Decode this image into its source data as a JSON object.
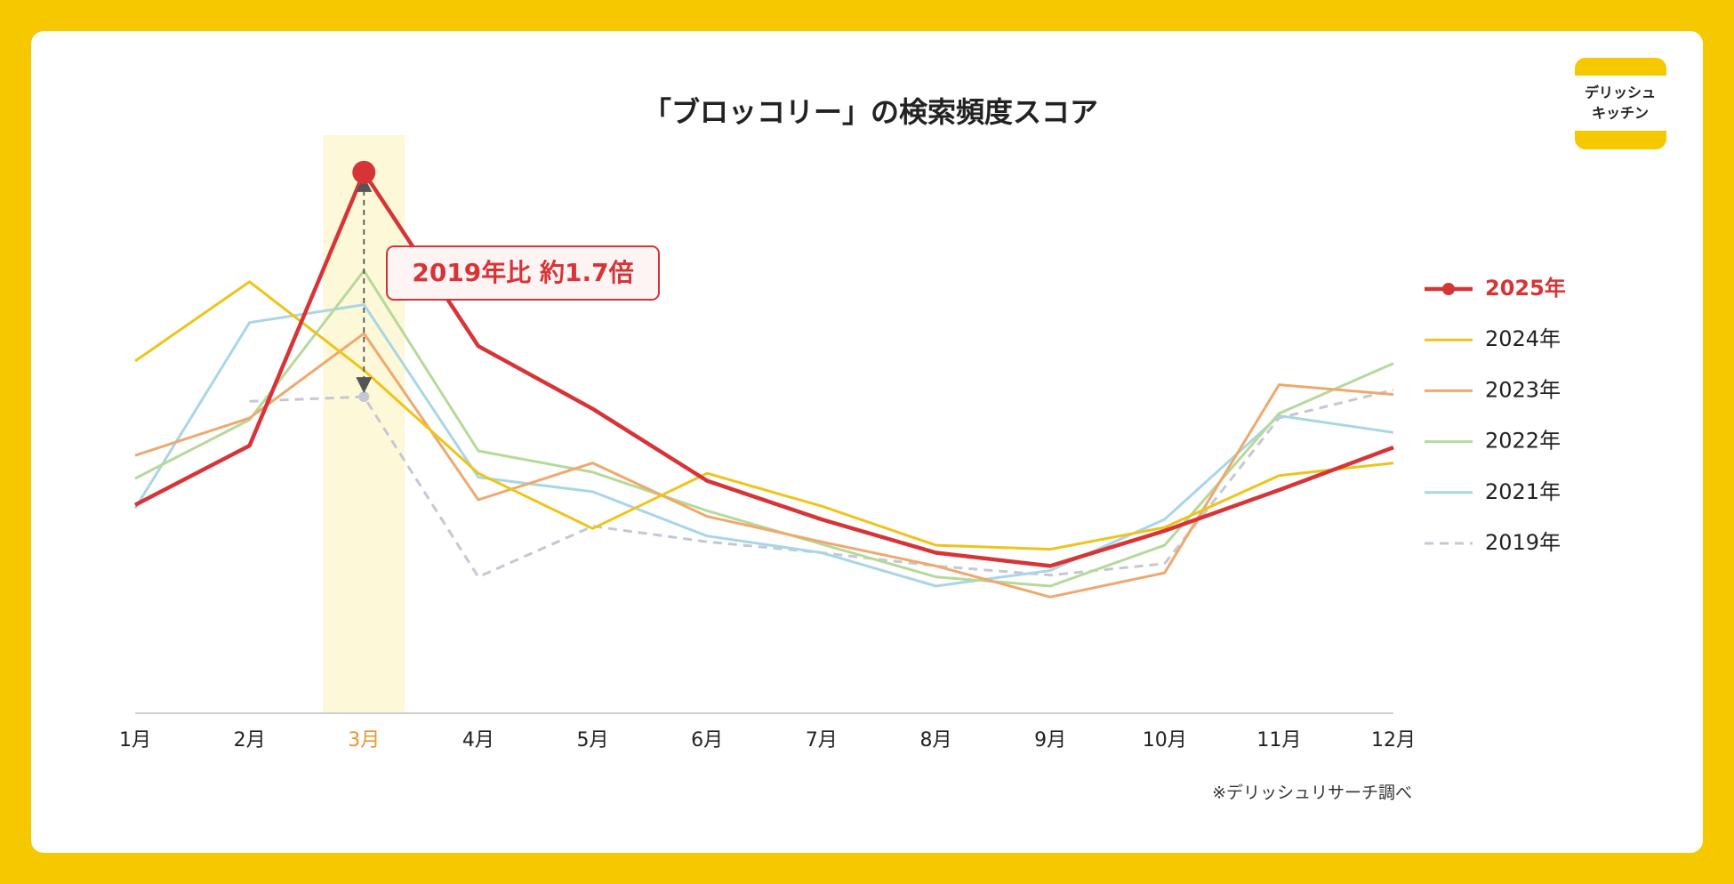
{
  "chart_data": {
    "type": "line",
    "title": "「ブロッコリー」の検索頻度スコア",
    "categories": [
      "1月",
      "2月",
      "3月",
      "4月",
      "5月",
      "6月",
      "7月",
      "8月",
      "9月",
      "10月",
      "11月",
      "12月"
    ],
    "ylim": [
      0,
      100
    ],
    "highlight_color": "#E8962E",
    "annotation": "2019年比 約1.7倍",
    "note": "※デリッシュリサーチ調べ",
    "logo": [
      "デリッシュ",
      "キッチン"
    ],
    "series": [
      {
        "name": "2025年",
        "color": "#D63437",
        "values": [
          36.2,
          46.5,
          94,
          63.8,
          52.9,
          40.4,
          33.7,
          27.9,
          25.6,
          31.7,
          38.8,
          46.2
        ]
      },
      {
        "name": "2024年",
        "color": "#EEC41A",
        "values": [
          61.2,
          75,
          59.6,
          41.7,
          32.1,
          41.7,
          36,
          29.2,
          28.5,
          32.3,
          41.3,
          43.5
        ]
      },
      {
        "name": "2023年",
        "color": "#EFA86E",
        "values": [
          44.8,
          51.3,
          66,
          37.1,
          43.5,
          34.2,
          29.8,
          25.6,
          20.2,
          24.4,
          57.1,
          55.4
        ]
      },
      {
        "name": "2022年",
        "color": "#B6D99A",
        "values": [
          40.8,
          51,
          76.9,
          45.6,
          41.9,
          35.2,
          29.4,
          23.7,
          22.1,
          29.2,
          52.1,
          60.8
        ]
      },
      {
        "name": "2021年",
        "color": "#A9D6E6",
        "values": [
          35.6,
          67.9,
          71,
          41,
          38.5,
          30.8,
          27.9,
          22.1,
          24.8,
          33.7,
          51.7,
          48.8
        ]
      },
      {
        "name": "2019年",
        "color": "#C5C8D4",
        "dashed": true,
        "values": [
          null,
          54.2,
          55,
          23.7,
          32.5,
          29.8,
          27.9,
          25.6,
          24,
          26,
          51.3,
          56.2
        ]
      }
    ]
  }
}
